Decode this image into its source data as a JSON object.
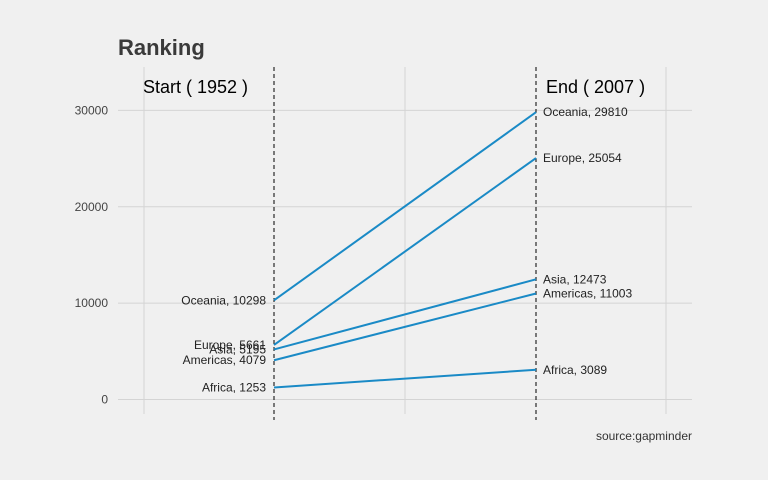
{
  "chart_data": {
    "type": "line",
    "title": "Ranking",
    "start_label": "Start ( 1952 )",
    "end_label": "End ( 2007 )",
    "x": [
      1952,
      2007
    ],
    "ylim": [
      -1500,
      34500
    ],
    "y_ticks": [
      "0",
      "10000",
      "20000",
      "30000"
    ],
    "y_tick_values": [
      0,
      10000,
      20000,
      30000
    ],
    "grid": true,
    "line_color": "#1a8ac6",
    "series": [
      {
        "name": "Oceania",
        "values": [
          10298,
          29810
        ],
        "start_text": "Oceania, 10298",
        "end_text": "Oceania, 29810"
      },
      {
        "name": "Europe",
        "values": [
          5661,
          25054
        ],
        "start_text": "Europe, 5661",
        "end_text": "Europe, 25054"
      },
      {
        "name": "Asia",
        "values": [
          5195,
          12473
        ],
        "start_text": "Asia, 5195",
        "end_text": "Asia, 12473"
      },
      {
        "name": "Americas",
        "values": [
          4079,
          11003
        ],
        "start_text": "Americas, 4079",
        "end_text": "Americas, 11003"
      },
      {
        "name": "Africa",
        "values": [
          1253,
          3089
        ],
        "start_text": "Africa, 1253",
        "end_text": "Africa, 3089"
      }
    ],
    "source": "source:gapminder"
  }
}
